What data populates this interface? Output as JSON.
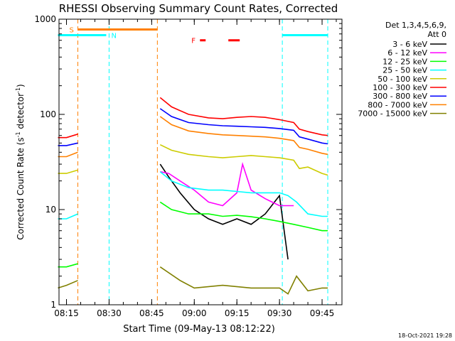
{
  "chart_data": {
    "type": "line",
    "title": "RHESSI Observing Summary Count Rates, Corrected",
    "xlabel": "Start Time (09-May-13 08:12:22)",
    "ylabel": "Corrected Count Rate (s",
    "ylabel_sup1": "-1",
    "ylabel_mid": " detector",
    "ylabel_sup2": "-1",
    "ylabel_end": ")",
    "ylog": true,
    "ylim": [
      1,
      1000
    ],
    "xlim": [
      "08:12:22",
      "09:52:00"
    ],
    "x_ticks": [
      "08:15",
      "08:30",
      "08:45",
      "09:00",
      "09:15",
      "09:30",
      "09:45"
    ],
    "y_ticks": [
      "1",
      "10",
      "100",
      "1000"
    ],
    "legend_header": [
      "Det 1,3,4,5,6,9,",
      "Att 0"
    ],
    "footer_date": "18-Oct-2021 19:28",
    "flag_labels": {
      "saa": "S",
      "night": "N",
      "flare": "F"
    },
    "series": [
      {
        "name": "3 - 6 keV",
        "color": "#000000",
        "x": [
          "08:12",
          "08:15",
          "08:19",
          "08:20",
          "08:47",
          "08:48",
          "08:51",
          "08:55",
          "09:00",
          "09:05",
          "09:10",
          "09:15",
          "09:20",
          "09:25",
          "09:30",
          "09:33"
        ],
        "values": [
          null,
          null,
          null,
          null,
          null,
          30,
          22,
          15,
          10,
          8,
          7,
          8,
          7,
          9,
          14,
          3
        ]
      },
      {
        "name": "6 - 12 keV",
        "color": "#ff00ff",
        "x": [
          "08:47",
          "08:48",
          "08:51",
          "08:55",
          "09:00",
          "09:05",
          "09:10",
          "09:15",
          "09:17",
          "09:20",
          "09:25",
          "09:30",
          "09:35"
        ],
        "values": [
          null,
          25,
          24,
          20,
          16,
          12,
          11,
          15,
          30,
          16,
          13,
          11,
          11
        ]
      },
      {
        "name": "12 - 25 keV",
        "color": "#00ff00",
        "x": [
          "08:12",
          "08:15",
          "08:19",
          "08:20",
          "08:47",
          "08:48",
          "08:52",
          "08:58",
          "09:05",
          "09:10",
          "09:15",
          "09:20",
          "09:25",
          "09:30",
          "09:35",
          "09:40",
          "09:45",
          "09:47"
        ],
        "values": [
          2.5,
          2.5,
          2.7,
          null,
          null,
          12,
          10,
          9,
          9,
          8.5,
          8.7,
          8.4,
          8,
          7.5,
          7,
          6.5,
          6,
          6
        ]
      },
      {
        "name": "25 - 50 keV",
        "color": "#00ffff",
        "x": [
          "08:12",
          "08:15",
          "08:19",
          "08:20",
          "08:47",
          "08:48",
          "08:52",
          "08:58",
          "09:05",
          "09:10",
          "09:15",
          "09:20",
          "09:25",
          "09:30",
          "09:33",
          "09:36",
          "09:40",
          "09:45",
          "09:47"
        ],
        "values": [
          8,
          8,
          9,
          null,
          null,
          25,
          20,
          17,
          16,
          16,
          15.5,
          15,
          15,
          15,
          14,
          12,
          9,
          8.5,
          8.5
        ]
      },
      {
        "name": "50 - 100 keV",
        "color": "#cccc00",
        "x": [
          "08:12",
          "08:15",
          "08:19",
          "08:20",
          "08:47",
          "08:48",
          "08:52",
          "08:58",
          "09:05",
          "09:10",
          "09:15",
          "09:20",
          "09:25",
          "09:30",
          "09:35",
          "09:37",
          "09:40",
          "09:45",
          "09:47"
        ],
        "values": [
          24,
          24,
          26,
          null,
          null,
          48,
          42,
          38,
          36,
          35,
          36,
          37,
          36,
          35,
          33,
          27,
          28,
          24,
          23
        ]
      },
      {
        "name": "100 - 300 keV",
        "color": "#ff0000",
        "x": [
          "08:12",
          "08:15",
          "08:19",
          "08:20",
          "08:47",
          "08:48",
          "08:52",
          "08:58",
          "09:05",
          "09:10",
          "09:15",
          "09:20",
          "09:25",
          "09:30",
          "09:35",
          "09:37",
          "09:40",
          "09:45",
          "09:47"
        ],
        "values": [
          57,
          57,
          62,
          null,
          null,
          150,
          120,
          100,
          92,
          90,
          93,
          95,
          93,
          88,
          82,
          70,
          66,
          61,
          60
        ]
      },
      {
        "name": "300 - 800 keV",
        "color": "#0000ff",
        "x": [
          "08:12",
          "08:15",
          "08:19",
          "08:20",
          "08:47",
          "08:48",
          "08:52",
          "08:58",
          "09:05",
          "09:10",
          "09:15",
          "09:20",
          "09:25",
          "09:30",
          "09:35",
          "09:37",
          "09:40",
          "09:45",
          "09:47"
        ],
        "values": [
          47,
          47,
          50,
          null,
          null,
          115,
          95,
          82,
          78,
          76,
          75,
          74,
          73,
          71,
          68,
          58,
          55,
          50,
          49
        ]
      },
      {
        "name": "800 - 7000 keV",
        "color": "#ff8000",
        "x": [
          "08:12",
          "08:15",
          "08:19",
          "08:20",
          "08:47",
          "08:48",
          "08:52",
          "08:58",
          "09:05",
          "09:10",
          "09:15",
          "09:20",
          "09:25",
          "09:30",
          "09:35",
          "09:37",
          "09:40",
          "09:45",
          "09:47"
        ],
        "values": [
          36,
          36,
          40,
          null,
          null,
          95,
          78,
          67,
          63,
          61,
          60,
          59,
          58,
          56,
          53,
          45,
          43,
          39,
          38
        ]
      },
      {
        "name": "7000 - 15000 keV",
        "color": "#808000",
        "x": [
          "08:12",
          "08:15",
          "08:19",
          "08:20",
          "08:47",
          "08:48",
          "08:55",
          "09:00",
          "09:10",
          "09:20",
          "09:30",
          "09:33",
          "09:36",
          "09:40",
          "09:45",
          "09:47"
        ],
        "values": [
          1.5,
          1.6,
          1.8,
          null,
          null,
          2.5,
          1.8,
          1.5,
          1.6,
          1.5,
          1.5,
          1.3,
          2,
          1.4,
          1.5,
          1.5
        ]
      }
    ],
    "flags": {
      "saa": {
        "color": "#ff8000",
        "level": 780,
        "start": "08:19",
        "end": "08:47"
      },
      "night": {
        "color": "#00ffff",
        "level": 680,
        "intervals": [
          [
            "08:12",
            "08:29"
          ],
          [
            "09:31",
            "09:47"
          ]
        ]
      },
      "flare": {
        "color": "#ff0000",
        "level": 600,
        "intervals": [
          [
            "09:02",
            "09:04"
          ],
          [
            "09:12",
            "09:16"
          ]
        ]
      }
    },
    "dashed_lines": [
      {
        "x": "08:19",
        "color": "#ff8000"
      },
      {
        "x": "08:30",
        "color": "#00ffff"
      },
      {
        "x": "08:47",
        "color": "#ff8000"
      },
      {
        "x": "09:31",
        "color": "#00ffff"
      },
      {
        "x": "09:47",
        "color": "#00ffff"
      }
    ],
    "grid": false,
    "legend_position": "right"
  }
}
